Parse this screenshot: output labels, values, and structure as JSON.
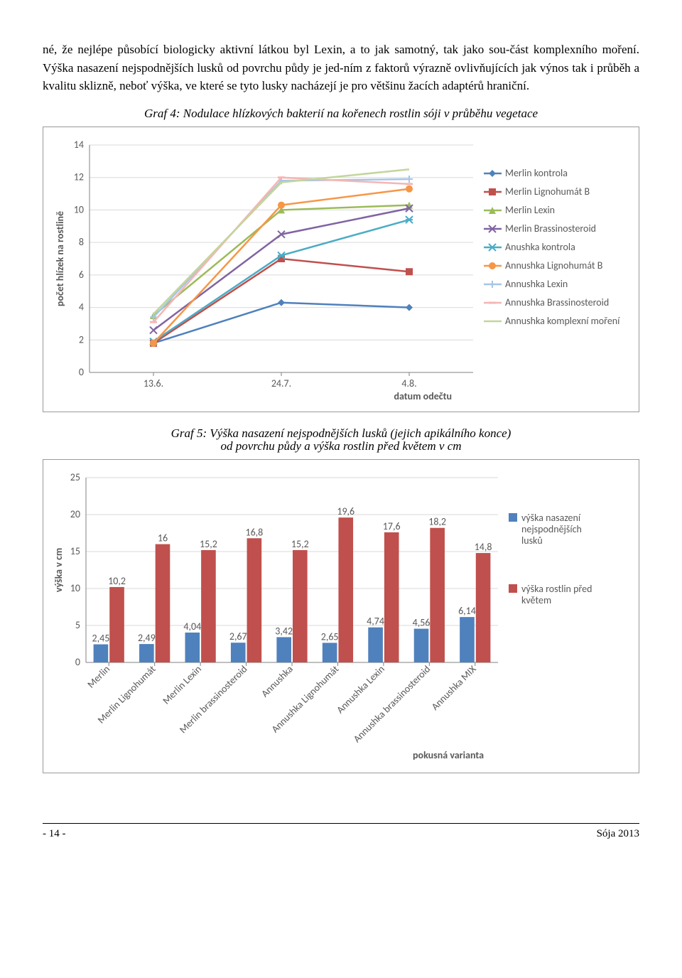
{
  "text": {
    "para1": "né, že nejlépe působící biologicky aktivní látkou byl Lexin, a to jak samotný, tak jako sou-část komplexního moření. Výška nasazení nejspodnějších lusků od povrchu půdy je jed-ním z faktorů výrazně ovlivňujících jak výnos tak i průběh a kvalitu sklizně, neboť výška, ve které se tyto lusky nacházejí je pro většinu žacích adaptérů hraniční.",
    "caption4": "Graf 4: Nodulace hlízkových bakterií na kořenech rostlin sóji v průběhu vegetace",
    "caption5a": "Graf 5: Výška nasazení nejspodnějších lusků (jejich apikálního konce)",
    "caption5b": "od povrchu půdy a výška rostlin před květem v cm"
  },
  "footer": {
    "left": "- 14 -",
    "right": "Sója 2013"
  },
  "chart4": {
    "type": "line",
    "y_label": "počet hlízek na rostlině",
    "x_label": "datum odečtu",
    "x_categories": [
      "13.6.",
      "24.7.",
      "4.8."
    ],
    "ylim": [
      0,
      14
    ],
    "ytick_step": 2,
    "plot_bg": "#ffffff",
    "grid_color": "#d9d9d9",
    "axis_color": "#808080",
    "series": [
      {
        "name": "Merlin kontrola",
        "color": "#4f81bd",
        "marker": "diamond",
        "values": [
          1.8,
          4.3,
          4.0
        ]
      },
      {
        "name": "Merlin Lignohumát B",
        "color": "#c0504d",
        "marker": "square",
        "values": [
          1.8,
          7.0,
          6.2
        ]
      },
      {
        "name": "Merlin Lexin",
        "color": "#9bbb59",
        "marker": "triangle",
        "values": [
          3.5,
          10.0,
          10.3
        ]
      },
      {
        "name": "Merlin Brassinosteroid",
        "color": "#8064a2",
        "marker": "x",
        "values": [
          2.6,
          8.5,
          10.1
        ]
      },
      {
        "name": "Anushka kontrola",
        "color": "#4bacc6",
        "marker": "star",
        "values": [
          1.9,
          7.2,
          9.4
        ]
      },
      {
        "name": "Annushka Lignohumát B",
        "color": "#f79646",
        "marker": "circle",
        "values": [
          1.8,
          10.3,
          11.3
        ]
      },
      {
        "name": "Annushka Lexin",
        "color": "#a6c5e8",
        "marker": "plus",
        "values": [
          3.4,
          11.8,
          11.9
        ]
      },
      {
        "name": "Annushka Brassinosteroid",
        "color": "#f4b6b4",
        "marker": "dash",
        "values": [
          3.1,
          12.0,
          11.6
        ]
      },
      {
        "name": "Annushka komplexní moření",
        "color": "#c3d69b",
        "marker": "none",
        "values": [
          3.6,
          11.7,
          12.5
        ]
      }
    ]
  },
  "chart5": {
    "type": "bar",
    "y_label": "výška v cm",
    "x_label": "pokusná varianta",
    "ylim": [
      0,
      25
    ],
    "ytick_step": 5,
    "plot_bg": "#ffffff",
    "grid_color": "#d9d9d9",
    "axis_color": "#808080",
    "categories": [
      "Merlin",
      "Merlin Lignohumát",
      "Merlin Lexin",
      "Merlin brassinosteroid",
      "Annushka",
      "Annushka Lignohumát",
      "Annushka Lexin",
      "Annushka brassinosteroid",
      "Annushka MIX"
    ],
    "series": [
      {
        "name": "výška nasazení nejspodnějších lusků",
        "color": "#4f81bd",
        "values": [
          2.45,
          2.49,
          4.04,
          2.67,
          3.42,
          2.65,
          4.74,
          4.56,
          6.14
        ]
      },
      {
        "name": "výška rostlin před květem",
        "color": "#c0504d",
        "values": [
          10.2,
          16,
          15.2,
          16.8,
          15.2,
          19.6,
          17.6,
          18.2,
          14.8
        ]
      }
    ],
    "data_labels1": [
      "2,45",
      "2,49",
      "4,04",
      "2,67",
      "3,42",
      "2,65",
      "4,74",
      "4,56",
      "6,14"
    ],
    "data_labels2": [
      "10,2",
      "16",
      "15,2",
      "16,8",
      "15,2",
      "19,6",
      "17,6",
      "18,2",
      "14,8"
    ]
  }
}
